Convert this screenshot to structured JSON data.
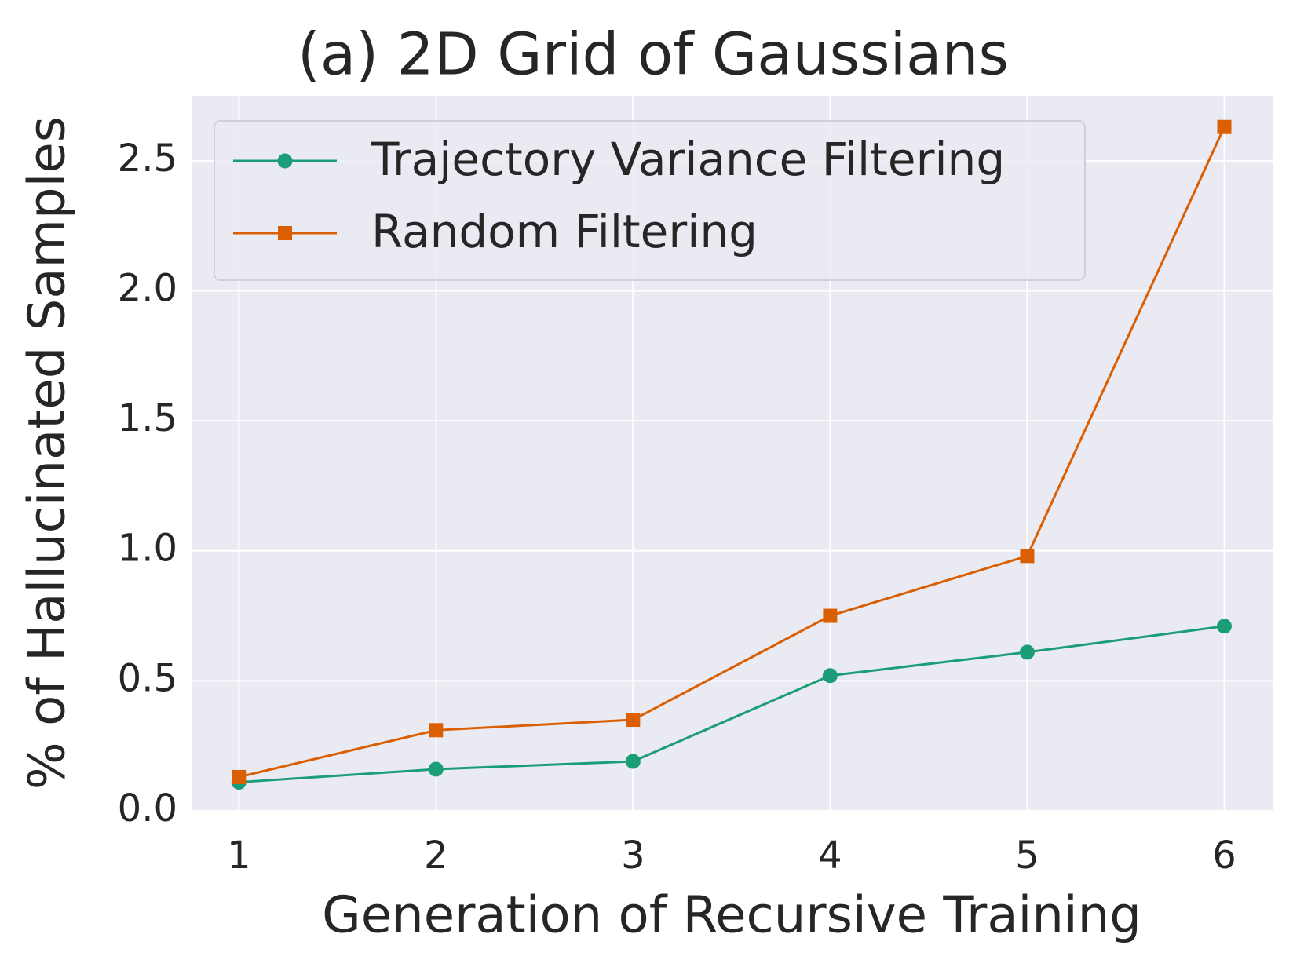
{
  "chart_data": {
    "type": "line",
    "title": "(a) 2D Grid of Gaussians",
    "xlabel": "Generation of Recursive Training",
    "ylabel": "% of Hallucinated Samples",
    "x": [
      1,
      2,
      3,
      4,
      5,
      6
    ],
    "series": [
      {
        "name": "Trajectory Variance Filtering",
        "color": "#1b9e77",
        "marker": "circle",
        "values": [
          0.11,
          0.16,
          0.19,
          0.52,
          0.61,
          0.71
        ]
      },
      {
        "name": "Random Filtering",
        "color": "#d95f02",
        "marker": "square",
        "values": [
          0.13,
          0.31,
          0.35,
          0.75,
          0.98,
          2.63
        ]
      }
    ],
    "xlim": [
      0.76,
      6.245
    ],
    "ylim": [
      0,
      2.75
    ],
    "xticks": [
      1,
      2,
      3,
      4,
      5,
      6
    ],
    "yticks": [
      {
        "value": 0,
        "label": "0.0"
      },
      0.5,
      {
        "value": 1,
        "label": "1.0"
      },
      1.5,
      {
        "value": 2,
        "label": "2.0"
      },
      2.5
    ],
    "grid": true,
    "legend": "upper left"
  }
}
